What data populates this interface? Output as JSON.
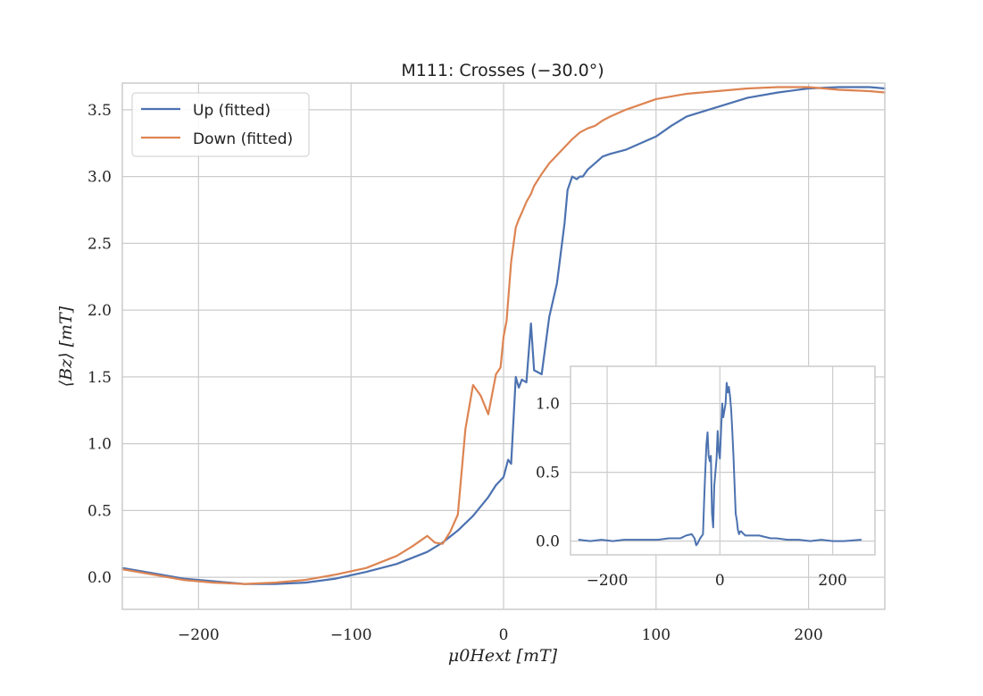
{
  "chart_data": [
    {
      "type": "line",
      "title": "M111: Crosses (−30.0°)",
      "xlabel": "μ0Hext [mT]",
      "ylabel": "⟨Bz⟩ [mT]",
      "xlim": [
        -250,
        250
      ],
      "ylim": [
        -0.24,
        3.7
      ],
      "xticks": [
        -200,
        -100,
        0,
        100,
        200
      ],
      "xtick_labels": [
        "−200",
        "−100",
        "0",
        "100",
        "200"
      ],
      "yticks": [
        0.0,
        0.5,
        1.0,
        1.5,
        2.0,
        2.5,
        3.0,
        3.5
      ],
      "ytick_labels": [
        "0.0",
        "0.5",
        "1.0",
        "1.5",
        "2.0",
        "2.5",
        "3.0",
        "3.5"
      ],
      "grid": true,
      "legend_position": "top-left",
      "series": [
        {
          "name": "Up (fitted)",
          "color": "#4c72b0",
          "x": [
            -250,
            -230,
            -210,
            -190,
            -170,
            -150,
            -130,
            -110,
            -90,
            -70,
            -50,
            -40,
            -30,
            -20,
            -10,
            -5,
            0,
            3,
            5,
            8,
            10,
            12,
            15,
            18,
            20,
            25,
            30,
            35,
            40,
            42,
            45,
            48,
            50,
            52,
            55,
            60,
            65,
            70,
            80,
            90,
            100,
            110,
            120,
            140,
            160,
            180,
            200,
            220,
            240,
            250
          ],
          "y": [
            0.07,
            0.03,
            -0.01,
            -0.03,
            -0.05,
            -0.05,
            -0.04,
            -0.01,
            0.04,
            0.1,
            0.19,
            0.26,
            0.35,
            0.46,
            0.6,
            0.69,
            0.75,
            0.88,
            0.85,
            1.5,
            1.42,
            1.48,
            1.46,
            1.9,
            1.55,
            1.52,
            1.95,
            2.2,
            2.65,
            2.9,
            3.0,
            2.98,
            3.0,
            3.0,
            3.05,
            3.1,
            3.15,
            3.17,
            3.2,
            3.25,
            3.3,
            3.38,
            3.45,
            3.52,
            3.59,
            3.63,
            3.66,
            3.67,
            3.67,
            3.66
          ]
        },
        {
          "name": "Down (fitted)",
          "color": "#dd8452",
          "x": [
            -250,
            -230,
            -210,
            -190,
            -170,
            -150,
            -130,
            -110,
            -90,
            -70,
            -60,
            -50,
            -45,
            -40,
            -35,
            -30,
            -25,
            -20,
            -15,
            -10,
            -5,
            -2,
            0,
            2,
            5,
            8,
            10,
            12,
            15,
            18,
            20,
            25,
            30,
            35,
            40,
            45,
            50,
            55,
            60,
            65,
            70,
            80,
            90,
            100,
            110,
            120,
            140,
            160,
            180,
            200,
            220,
            240,
            250
          ],
          "y": [
            0.06,
            0.02,
            -0.02,
            -0.04,
            -0.05,
            -0.04,
            -0.02,
            0.02,
            0.07,
            0.16,
            0.23,
            0.31,
            0.26,
            0.25,
            0.34,
            0.47,
            1.11,
            1.44,
            1.36,
            1.22,
            1.52,
            1.57,
            1.8,
            1.92,
            2.36,
            2.62,
            2.68,
            2.73,
            2.81,
            2.87,
            2.93,
            3.02,
            3.1,
            3.16,
            3.22,
            3.28,
            3.33,
            3.36,
            3.38,
            3.42,
            3.45,
            3.5,
            3.54,
            3.58,
            3.6,
            3.62,
            3.64,
            3.66,
            3.67,
            3.67,
            3.65,
            3.64,
            3.63
          ]
        }
      ]
    },
    {
      "type": "line",
      "title": "",
      "xlim": [
        -265,
        275
      ],
      "ylim": [
        -0.1,
        1.27
      ],
      "xticks": [
        -200,
        0,
        200
      ],
      "xtick_labels": [
        "−200",
        "0",
        "200"
      ],
      "yticks": [
        0.0,
        0.5,
        1.0
      ],
      "ytick_labels": [
        "0.0",
        "0.5",
        "1.0"
      ],
      "grid": true,
      "series": [
        {
          "color": "#4c72b0",
          "x": [
            -250,
            -230,
            -210,
            -190,
            -170,
            -150,
            -130,
            -110,
            -90,
            -70,
            -60,
            -50,
            -45,
            -42,
            -40,
            -35,
            -30,
            -28,
            -26,
            -24,
            -22,
            -20,
            -18,
            -16,
            -14,
            -12,
            -10,
            -8,
            -6,
            -4,
            -2,
            0,
            2,
            4,
            6,
            8,
            10,
            12,
            14,
            16,
            18,
            20,
            22,
            24,
            26,
            28,
            30,
            32,
            34,
            36,
            38,
            40,
            45,
            50,
            60,
            70,
            80,
            90,
            100,
            120,
            140,
            160,
            180,
            200,
            220,
            250
          ],
          "y": [
            0.01,
            0.0,
            0.01,
            0.0,
            0.01,
            0.01,
            0.01,
            0.01,
            0.02,
            0.02,
            0.04,
            0.05,
            0.02,
            -0.03,
            -0.02,
            0.02,
            0.05,
            0.3,
            0.5,
            0.7,
            0.79,
            0.62,
            0.58,
            0.62,
            0.2,
            0.1,
            0.4,
            0.5,
            0.6,
            0.8,
            0.65,
            0.6,
            0.8,
            1.0,
            0.9,
            0.95,
            1.0,
            1.15,
            1.08,
            1.12,
            1.05,
            0.95,
            0.8,
            0.62,
            0.4,
            0.2,
            0.15,
            0.08,
            0.05,
            0.07,
            0.07,
            0.06,
            0.04,
            0.04,
            0.04,
            0.04,
            0.03,
            0.02,
            0.02,
            0.01,
            0.01,
            0.0,
            0.01,
            0.0,
            0.0,
            0.01
          ]
        }
      ]
    }
  ]
}
